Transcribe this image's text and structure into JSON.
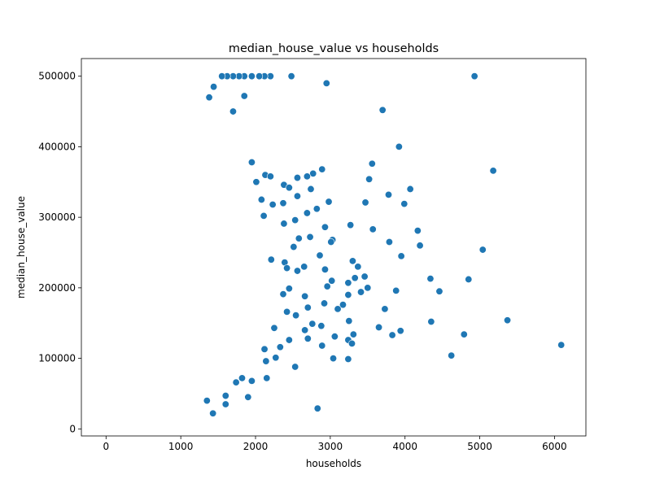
{
  "chart_data": {
    "type": "scatter",
    "title": "median_house_value vs households",
    "xlabel": "households",
    "ylabel": "median_house_value",
    "xlim": [
      -330,
      6420
    ],
    "ylim": [
      -10000,
      525000
    ],
    "xticks": [
      0,
      1000,
      2000,
      3000,
      4000,
      5000,
      6000
    ],
    "yticks": [
      0,
      100000,
      200000,
      300000,
      400000,
      500000
    ],
    "xtick_labels": [
      "0",
      "1000",
      "2000",
      "3000",
      "4000",
      "5000",
      "6000"
    ],
    "ytick_labels": [
      "0",
      "100000",
      "200000",
      "300000",
      "400000",
      "500000"
    ],
    "grid": false,
    "marker_color": "#1f77b4",
    "marker_edge": "#ffffff",
    "series": [
      {
        "points": [
          [
            4930,
            500001
          ],
          [
            2950,
            490000
          ],
          [
            2480,
            500001
          ],
          [
            2200,
            500001
          ],
          [
            2120,
            500001
          ],
          [
            2050,
            500001
          ],
          [
            1950,
            500001
          ],
          [
            1850,
            500001
          ],
          [
            1780,
            500001
          ],
          [
            1700,
            500001
          ],
          [
            1620,
            500001
          ],
          [
            1550,
            500001
          ],
          [
            1850,
            472000
          ],
          [
            3700,
            452000
          ],
          [
            1700,
            450000
          ],
          [
            1440,
            485000
          ],
          [
            1380,
            470000
          ],
          [
            3920,
            400000
          ],
          [
            3560,
            376000
          ],
          [
            5180,
            366000
          ],
          [
            2890,
            368000
          ],
          [
            1950,
            378000
          ],
          [
            2770,
            362000
          ],
          [
            2690,
            358000
          ],
          [
            2560,
            356000
          ],
          [
            3520,
            354000
          ],
          [
            2130,
            360000
          ],
          [
            2200,
            358000
          ],
          [
            2010,
            350000
          ],
          [
            2380,
            346000
          ],
          [
            2450,
            342000
          ],
          [
            2740,
            340000
          ],
          [
            4070,
            340000
          ],
          [
            3780,
            332000
          ],
          [
            2560,
            330000
          ],
          [
            2370,
            320000
          ],
          [
            2080,
            325000
          ],
          [
            2980,
            322000
          ],
          [
            3470,
            321000
          ],
          [
            3990,
            319000
          ],
          [
            2230,
            318000
          ],
          [
            2820,
            312000
          ],
          [
            2690,
            306000
          ],
          [
            2110,
            302000
          ],
          [
            2530,
            296000
          ],
          [
            2380,
            291000
          ],
          [
            2930,
            286000
          ],
          [
            3270,
            289000
          ],
          [
            3570,
            283000
          ],
          [
            4170,
            281000
          ],
          [
            2730,
            272000
          ],
          [
            2580,
            270000
          ],
          [
            3030,
            268000
          ],
          [
            3790,
            265000
          ],
          [
            4200,
            260000
          ],
          [
            3010,
            265000
          ],
          [
            5040,
            254000
          ],
          [
            2510,
            258000
          ],
          [
            3950,
            245000
          ],
          [
            2860,
            246000
          ],
          [
            2210,
            240000
          ],
          [
            2390,
            236000
          ],
          [
            3300,
            238000
          ],
          [
            3370,
            230000
          ],
          [
            2650,
            230000
          ],
          [
            2930,
            226000
          ],
          [
            2560,
            224000
          ],
          [
            2420,
            228000
          ],
          [
            3460,
            216000
          ],
          [
            3330,
            214000
          ],
          [
            4340,
            213000
          ],
          [
            4850,
            212000
          ],
          [
            3020,
            210000
          ],
          [
            3240,
            207000
          ],
          [
            2960,
            202000
          ],
          [
            3500,
            200000
          ],
          [
            2450,
            199000
          ],
          [
            3880,
            196000
          ],
          [
            4460,
            195000
          ],
          [
            3410,
            194000
          ],
          [
            3240,
            190000
          ],
          [
            2660,
            188000
          ],
          [
            2370,
            191000
          ],
          [
            2920,
            178000
          ],
          [
            3170,
            176000
          ],
          [
            3730,
            170000
          ],
          [
            3100,
            170000
          ],
          [
            2700,
            172000
          ],
          [
            2420,
            166000
          ],
          [
            2540,
            161000
          ],
          [
            5370,
            154000
          ],
          [
            4350,
            152000
          ],
          [
            3250,
            153000
          ],
          [
            2760,
            149000
          ],
          [
            2880,
            146000
          ],
          [
            3650,
            144000
          ],
          [
            2660,
            140000
          ],
          [
            2250,
            143000
          ],
          [
            3940,
            139000
          ],
          [
            3830,
            133000
          ],
          [
            4790,
            134000
          ],
          [
            3310,
            134000
          ],
          [
            3060,
            131000
          ],
          [
            3240,
            126000
          ],
          [
            2700,
            128000
          ],
          [
            2450,
            126000
          ],
          [
            6090,
            119000
          ],
          [
            3290,
            121000
          ],
          [
            2890,
            118000
          ],
          [
            2330,
            116000
          ],
          [
            2120,
            113000
          ],
          [
            4620,
            104000
          ],
          [
            3240,
            99000
          ],
          [
            3040,
            100000
          ],
          [
            2270,
            101000
          ],
          [
            2140,
            96000
          ],
          [
            2530,
            88000
          ],
          [
            2150,
            72000
          ],
          [
            1950,
            68000
          ],
          [
            1820,
            72000
          ],
          [
            1900,
            45000
          ],
          [
            1600,
            47000
          ],
          [
            1430,
            22000
          ],
          [
            1600,
            35000
          ],
          [
            2830,
            29000
          ],
          [
            1350,
            40000
          ],
          [
            1740,
            66000
          ]
        ]
      }
    ]
  }
}
